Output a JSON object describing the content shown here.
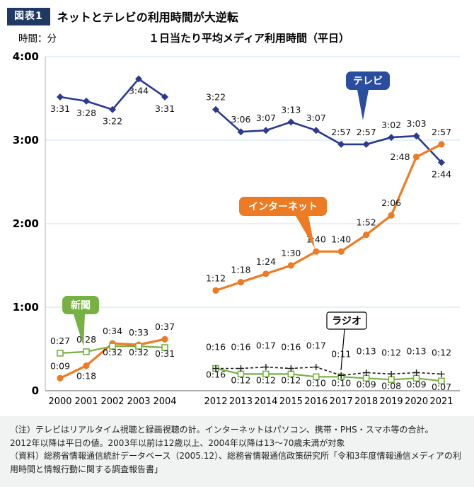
{
  "header": {
    "badge": "図表1",
    "title": "ネットとテレビの利用時間が大逆転"
  },
  "colors": {
    "badge_bg": "#1f3864",
    "tv": "#2b3a8e",
    "internet": "#ed7b23",
    "newspaper": "#76b143",
    "radio": "#1a1a1a"
  },
  "chart_data": {
    "type": "line",
    "title": "１日当たり平均メディア利用時間（平日）",
    "y_axis": {
      "unit_label": "時間：分",
      "ticks": [
        "4:00",
        "3:00",
        "2:00",
        "1:00",
        "0"
      ],
      "ylim": [
        "0",
        "4:00"
      ],
      "grid": true,
      "grid_color": "#c9e3f4"
    },
    "x_groups": [
      {
        "years": [
          "2000",
          "2001",
          "2002",
          "2003",
          "2004"
        ]
      },
      {
        "years": [
          "2012",
          "2013",
          "2014",
          "2015",
          "2016",
          "2017",
          "2018",
          "2019",
          "2020",
          "2021"
        ]
      }
    ],
    "series": [
      {
        "id": "tv",
        "name": "テレビ",
        "color": "#2b3a8e",
        "marker": "diamond",
        "line": "solid",
        "points": [
          {
            "x": "2000",
            "v": "3:31",
            "label_pos": "below"
          },
          {
            "x": "2001",
            "v": "3:28",
            "label_pos": "below"
          },
          {
            "x": "2002",
            "v": "3:22",
            "label_pos": "below"
          },
          {
            "x": "2003",
            "v": "3:44",
            "label_pos": "below"
          },
          {
            "x": "2004",
            "v": "3:31",
            "label_pos": "below"
          },
          {
            "x": "2012",
            "v": "3:22",
            "label_pos": "above"
          },
          {
            "x": "2013",
            "v": "3:06",
            "label_pos": "above"
          },
          {
            "x": "2014",
            "v": "3:07",
            "label_pos": "above"
          },
          {
            "x": "2015",
            "v": "3:13",
            "label_pos": "above"
          },
          {
            "x": "2016",
            "v": "3:07",
            "label_pos": "above"
          },
          {
            "x": "2017",
            "v": "2:57",
            "label_pos": "above"
          },
          {
            "x": "2018",
            "v": "2:57",
            "label_pos": "above"
          },
          {
            "x": "2019",
            "v": "3:02",
            "label_pos": "above"
          },
          {
            "x": "2020",
            "v": "3:03",
            "label_pos": "above"
          },
          {
            "x": "2021",
            "v": "2:44",
            "label_pos": "below"
          }
        ]
      },
      {
        "id": "internet",
        "name": "インターネット",
        "color": "#ed7b23",
        "marker": "circle",
        "line": "solid",
        "points": [
          {
            "x": "2000",
            "v": "0:09",
            "label_pos": "above"
          },
          {
            "x": "2001",
            "v": "0:18",
            "label_pos": "below"
          },
          {
            "x": "2002",
            "v": "0:34",
            "label_pos": "above"
          },
          {
            "x": "2003",
            "v": "0:33",
            "label_pos": "above"
          },
          {
            "x": "2004",
            "v": "0:37",
            "label_pos": "above"
          },
          {
            "x": "2012",
            "v": "1:12",
            "label_pos": "above"
          },
          {
            "x": "2013",
            "v": "1:18",
            "label_pos": "above"
          },
          {
            "x": "2014",
            "v": "1:24",
            "label_pos": "above"
          },
          {
            "x": "2015",
            "v": "1:30",
            "label_pos": "above"
          },
          {
            "x": "2016",
            "v": "1:40",
            "label_pos": "above"
          },
          {
            "x": "2017",
            "v": "1:40",
            "label_pos": "above"
          },
          {
            "x": "2018",
            "v": "1:52",
            "label_pos": "above"
          },
          {
            "x": "2019",
            "v": "2:06",
            "label_pos": "above"
          },
          {
            "x": "2020",
            "v": "2:48",
            "label_pos": "left"
          },
          {
            "x": "2021",
            "v": "2:57",
            "label_pos": "above"
          }
        ]
      },
      {
        "id": "newspaper",
        "name": "新聞",
        "color": "#76b143",
        "marker": "square-open",
        "line": "solid",
        "points": [
          {
            "x": "2000",
            "v": "0:27",
            "label_pos": "above"
          },
          {
            "x": "2001",
            "v": "0:28",
            "label_pos": "above"
          },
          {
            "x": "2002",
            "v": "0:32",
            "label_pos": "below"
          },
          {
            "x": "2003",
            "v": "0:32",
            "label_pos": "below"
          },
          {
            "x": "2004",
            "v": "0:31",
            "label_pos": "below"
          },
          {
            "x": "2012",
            "v": "0:16",
            "label_pos": "below"
          },
          {
            "x": "2013",
            "v": "0:12",
            "label_pos": "below"
          },
          {
            "x": "2014",
            "v": "0:12",
            "label_pos": "below"
          },
          {
            "x": "2015",
            "v": "0:12",
            "label_pos": "below"
          },
          {
            "x": "2016",
            "v": "0:10",
            "label_pos": "below"
          },
          {
            "x": "2017",
            "v": "0:10",
            "label_pos": "below"
          },
          {
            "x": "2018",
            "v": "0:09",
            "label_pos": "below"
          },
          {
            "x": "2019",
            "v": "0:08",
            "label_pos": "below"
          },
          {
            "x": "2020",
            "v": "0:09",
            "label_pos": "below"
          },
          {
            "x": "2021",
            "v": "0:07",
            "label_pos": "below"
          }
        ]
      },
      {
        "id": "radio",
        "name": "ラジオ",
        "color": "#1a1a1a",
        "marker": "plus",
        "line": "dashed",
        "points": [
          {
            "x": "2012",
            "v": "0:16",
            "label_pos": "above"
          },
          {
            "x": "2013",
            "v": "0:16",
            "label_pos": "above"
          },
          {
            "x": "2014",
            "v": "0:17",
            "label_pos": "above"
          },
          {
            "x": "2015",
            "v": "0:16",
            "label_pos": "above"
          },
          {
            "x": "2016",
            "v": "0:17",
            "label_pos": "above"
          },
          {
            "x": "2017",
            "v": "0:11",
            "label_pos": "above"
          },
          {
            "x": "2018",
            "v": "0:13",
            "label_pos": "above"
          },
          {
            "x": "2019",
            "v": "0:12",
            "label_pos": "above"
          },
          {
            "x": "2020",
            "v": "0:13",
            "label_pos": "above"
          },
          {
            "x": "2021",
            "v": "0:12",
            "label_pos": "above"
          }
        ]
      }
    ],
    "annotations": [
      {
        "id": "tv",
        "text": "テレビ",
        "bg": "#2a4da0",
        "fg": "#ffffff"
      },
      {
        "id": "internet",
        "text": "インターネット",
        "bg": "#ed7b23",
        "fg": "#ffffff"
      },
      {
        "id": "newspaper",
        "text": "新聞",
        "bg": "#76b143",
        "fg": "#ffffff"
      },
      {
        "id": "radio",
        "text": "ラジオ",
        "bg": "#ffffff",
        "fg": "#000000",
        "border": "#000000"
      }
    ]
  },
  "footer": {
    "note1": "（注）テレビはリアルタイム視聴と録画視聴の計。インターネットはパソコン、携帯・PHS・スマホ等の合計。",
    "note2": "2012年以降は平日の値。2003年以前は12歳以上、2004年以降は13〜70歳未満が対象",
    "source": "（資料）総務省情報通信統計データベース（2005.12）、総務省情報通信政策研究所「令和3年度情報通信メディアの利用時間と情報行動に関する調査報告書」"
  }
}
